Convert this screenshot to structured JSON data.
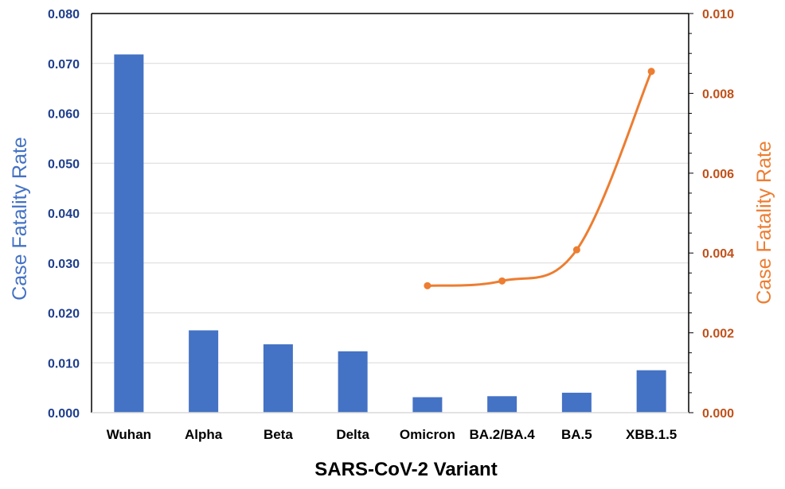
{
  "chart_data": {
    "type": "bar",
    "categories": [
      "Wuhan",
      "Alpha",
      "Beta",
      "Delta",
      "Omicron",
      "BA.2/BA.4",
      "BA.5",
      "XBB.1.5"
    ],
    "series": [
      {
        "type": "bar",
        "axis": "left",
        "color": "#4472C4",
        "values": [
          0.0718,
          0.0165,
          0.0137,
          0.0123,
          0.0031,
          0.0033,
          0.004,
          0.0085
        ]
      },
      {
        "type": "line",
        "axis": "right",
        "color": "#ED7D31",
        "values": [
          null,
          null,
          null,
          null,
          0.00318,
          0.0033,
          0.00408,
          0.00855
        ]
      }
    ],
    "xlabel": "SARS-CoV-2 Variant",
    "ylabel": "Case Fatality Rate",
    "y2label": "Case Fatality Rate",
    "ylim": [
      0,
      0.08
    ],
    "y2lim": [
      0,
      0.01
    ],
    "yticks": [
      "0.000",
      "0.010",
      "0.020",
      "0.030",
      "0.040",
      "0.050",
      "0.060",
      "0.070",
      "0.080"
    ],
    "y2ticks": [
      "0.000",
      "0.002",
      "0.004",
      "0.006",
      "0.008",
      "0.010"
    ],
    "grid": true,
    "legend": "none"
  },
  "colors": {
    "left_axis_text": "#1F3E8C",
    "right_axis_text": "#C0501A",
    "left_label": "#4472C4",
    "right_label": "#ED7D31",
    "grid": "#D9D9D9",
    "axis_line": "#000000"
  }
}
